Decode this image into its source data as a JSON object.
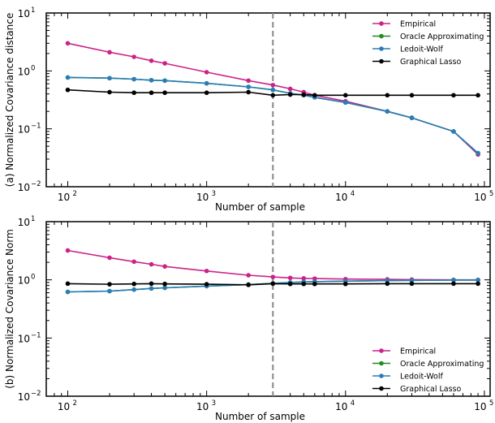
{
  "chart_data": [
    {
      "type": "line",
      "ylabel": "(a) Normalized Covariance distance",
      "xlabel": "Number of sample",
      "xscale": "log",
      "yscale": "log",
      "xlim": [
        70,
        110000
      ],
      "ylim": [
        0.01,
        10
      ],
      "grid": false,
      "legend": "top-right",
      "vline_x": 3000,
      "x": [
        100,
        200,
        300,
        400,
        500,
        1000,
        2000,
        3000,
        4000,
        5000,
        6000,
        10000,
        20000,
        30000,
        60000,
        90000
      ],
      "series": [
        {
          "name": "Empirical",
          "color": "#cc2288",
          "values": [
            3.0,
            2.1,
            1.75,
            1.5,
            1.35,
            0.95,
            0.68,
            0.57,
            0.49,
            0.43,
            0.38,
            0.3,
            0.2,
            0.155,
            0.09,
            0.036
          ]
        },
        {
          "name": "Oracle Approximating",
          "color": "#228b22",
          "values": [
            0.77,
            0.75,
            0.72,
            0.69,
            0.68,
            0.61,
            0.53,
            0.47,
            0.41,
            0.38,
            0.35,
            0.285,
            0.2,
            0.155,
            0.09,
            0.038
          ]
        },
        {
          "name": "Ledoit-Wolf",
          "color": "#2a7db8",
          "values": [
            0.77,
            0.75,
            0.72,
            0.69,
            0.68,
            0.61,
            0.53,
            0.47,
            0.41,
            0.38,
            0.35,
            0.285,
            0.2,
            0.155,
            0.09,
            0.038
          ]
        },
        {
          "name": "Graphical Lasso",
          "color": "#000000",
          "values": [
            0.47,
            0.43,
            0.42,
            0.42,
            0.42,
            0.42,
            0.43,
            0.38,
            0.39,
            0.39,
            0.38,
            0.38,
            0.38,
            0.38,
            0.38,
            0.38
          ]
        }
      ]
    },
    {
      "type": "line",
      "ylabel": "(b) Normalized Covariance Norm",
      "xlabel": "Number of sample",
      "xscale": "log",
      "yscale": "log",
      "xlim": [
        70,
        110000
      ],
      "ylim": [
        0.01,
        10
      ],
      "grid": false,
      "legend": "bottom-right",
      "vline_x": 3000,
      "x": [
        100,
        200,
        300,
        400,
        500,
        1000,
        2000,
        3000,
        4000,
        5000,
        6000,
        10000,
        20000,
        30000,
        60000,
        90000
      ],
      "series": [
        {
          "name": "Empirical",
          "color": "#cc2288",
          "values": [
            3.2,
            2.4,
            2.05,
            1.85,
            1.7,
            1.42,
            1.2,
            1.12,
            1.08,
            1.06,
            1.05,
            1.03,
            1.02,
            1.01,
            1.0,
            1.0
          ]
        },
        {
          "name": "Oracle Approximating",
          "color": "#228b22",
          "values": [
            0.62,
            0.64,
            0.68,
            0.71,
            0.73,
            0.78,
            0.83,
            0.87,
            0.9,
            0.92,
            0.93,
            0.95,
            0.97,
            0.98,
            0.99,
            0.99
          ]
        },
        {
          "name": "Ledoit-Wolf",
          "color": "#2a7db8",
          "values": [
            0.62,
            0.64,
            0.68,
            0.71,
            0.73,
            0.78,
            0.83,
            0.87,
            0.9,
            0.92,
            0.93,
            0.95,
            0.97,
            0.98,
            0.99,
            0.99
          ]
        },
        {
          "name": "Graphical Lasso",
          "color": "#000000",
          "values": [
            0.86,
            0.84,
            0.85,
            0.86,
            0.85,
            0.84,
            0.82,
            0.86,
            0.85,
            0.85,
            0.85,
            0.85,
            0.86,
            0.86,
            0.86,
            0.86
          ]
        }
      ]
    }
  ]
}
